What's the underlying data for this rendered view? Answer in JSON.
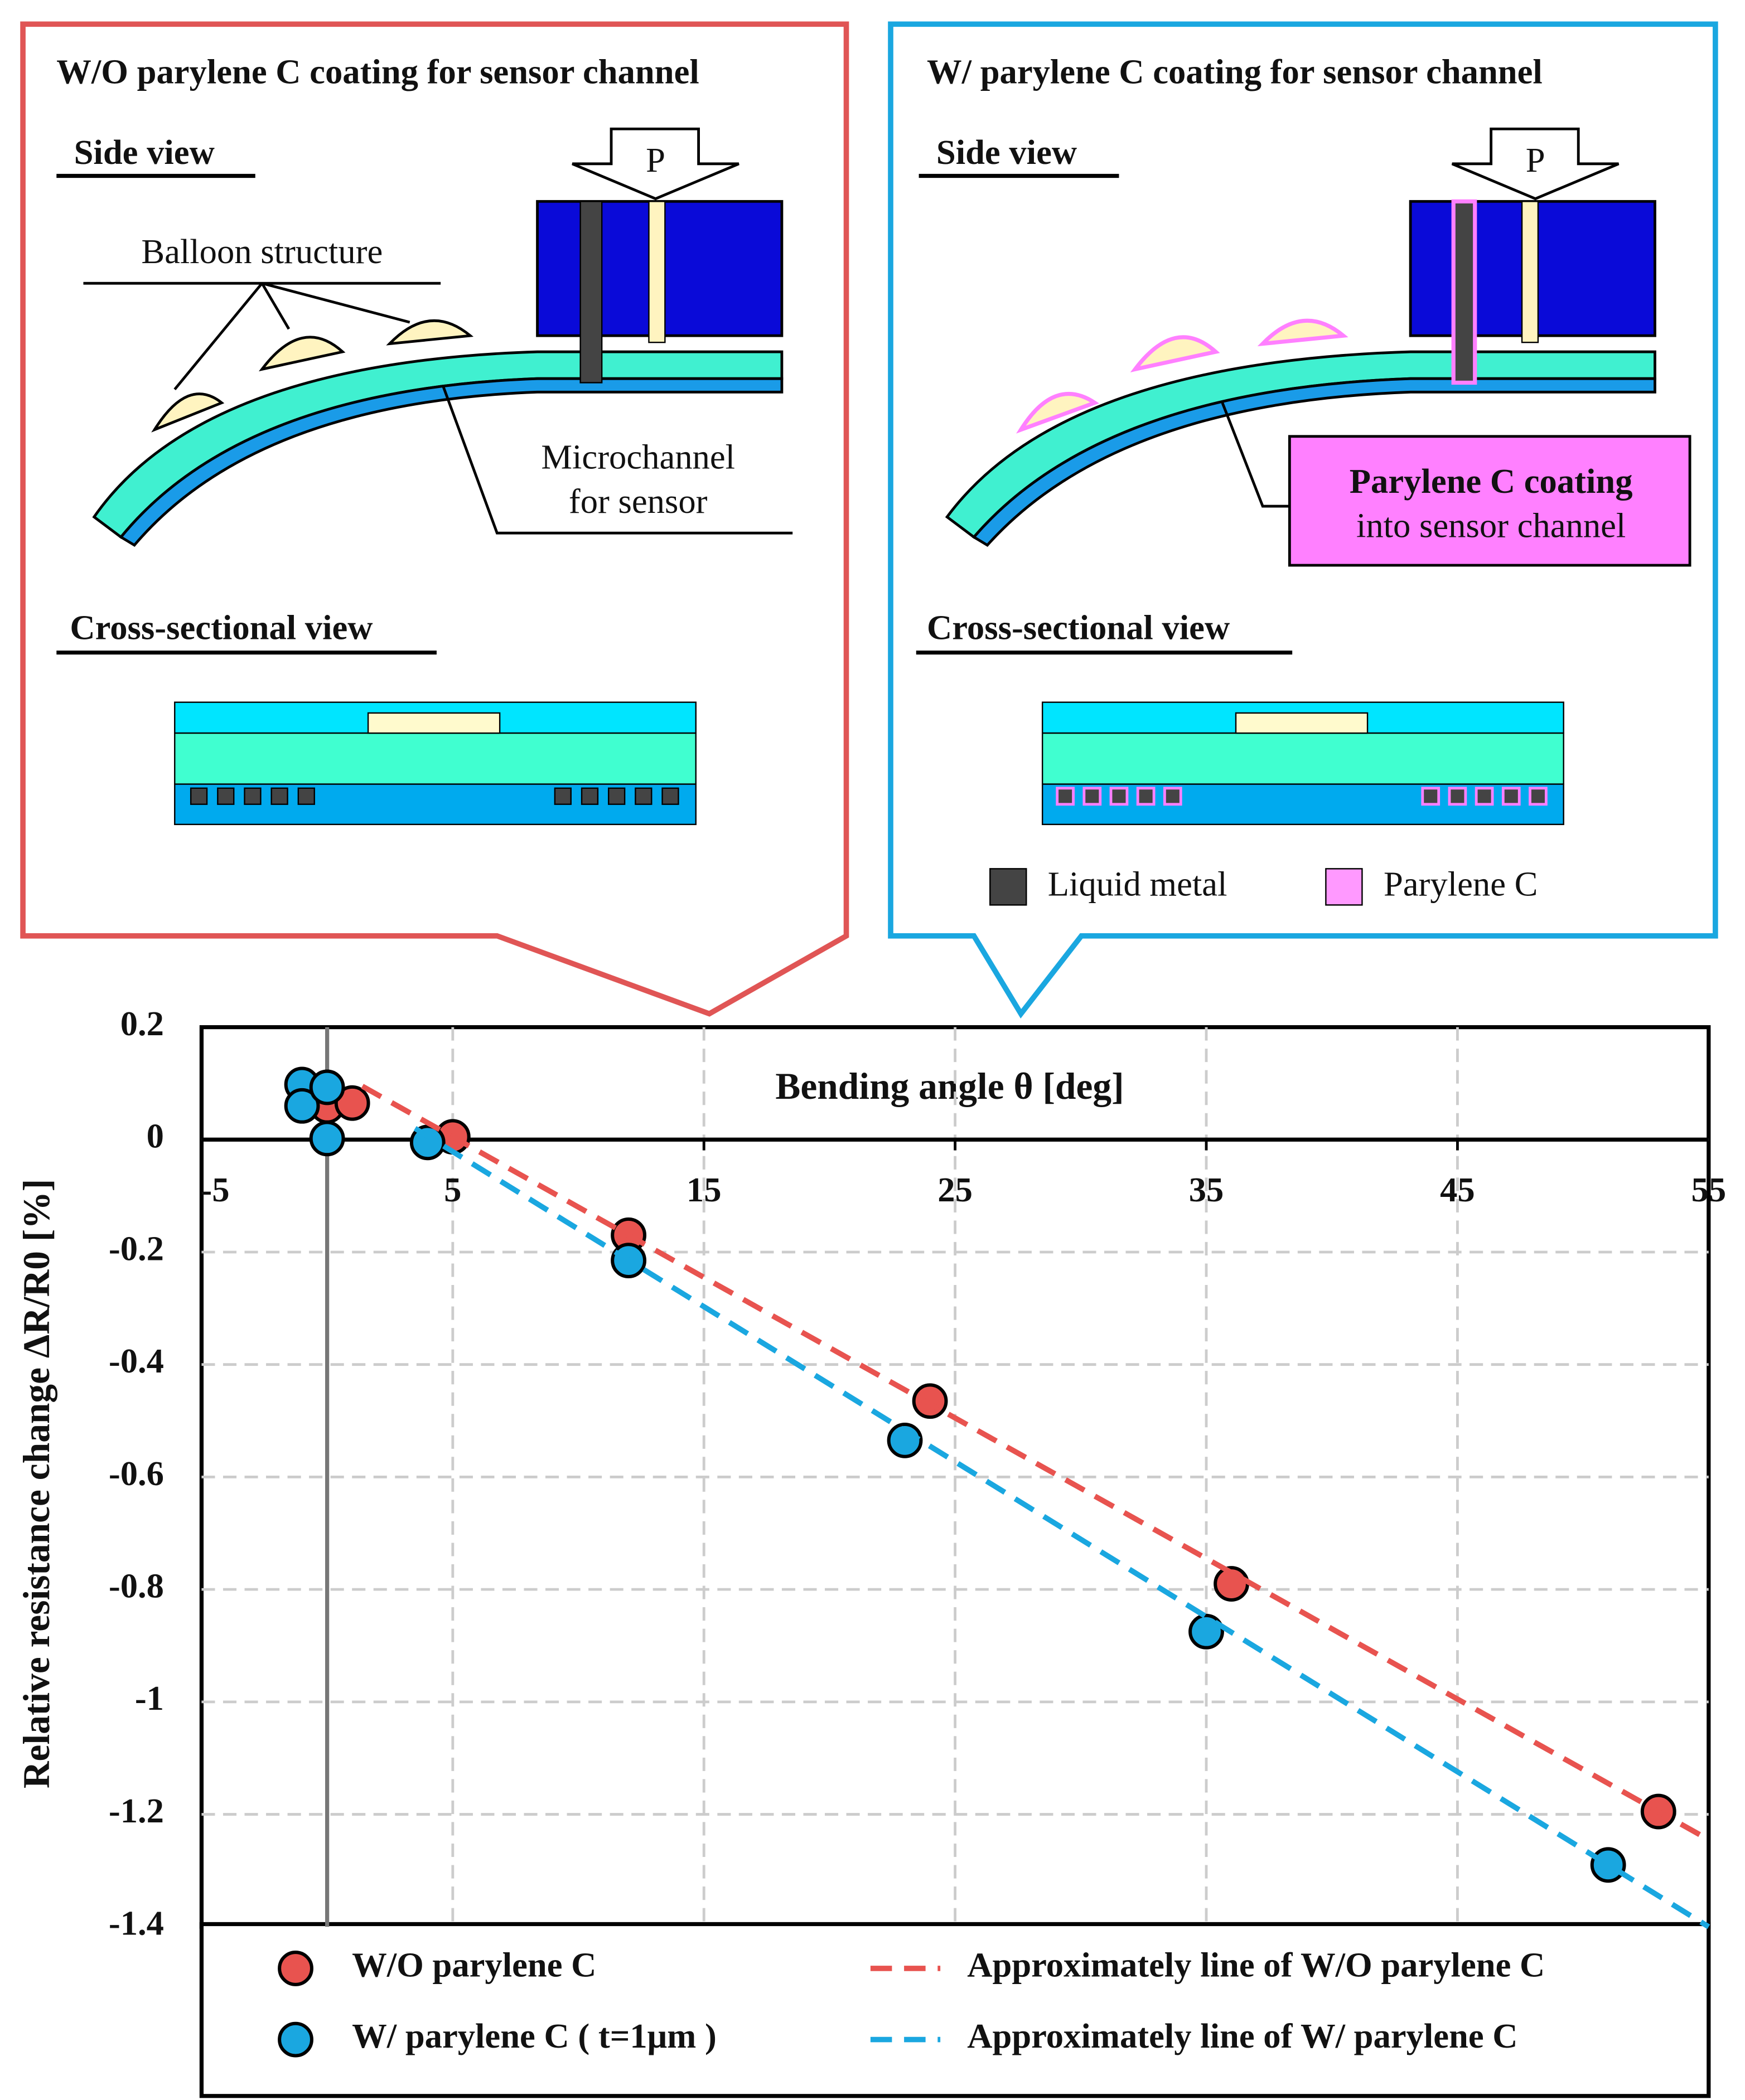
{
  "chart_data": {
    "type": "scatter",
    "x_label": "Bending angle θ [deg]",
    "y_label": "Relative resistance change ΔR/R0 [%]",
    "xlim": [
      -5,
      55
    ],
    "xticks": [
      -5,
      5,
      15,
      25,
      35,
      45,
      55
    ],
    "ylim": [
      -1.4,
      0.2
    ],
    "yticks": [
      0.2,
      0,
      -0.2,
      -0.4,
      -0.6,
      -0.8,
      -1,
      -1.2,
      -1.4
    ],
    "grid": true,
    "series": [
      {
        "name": "W/O parylene C",
        "color": "#e8534f",
        "style": "marker",
        "x": [
          0,
          1,
          5,
          12,
          24,
          36,
          53
        ],
        "values": [
          0.06,
          0.065,
          0.005,
          -0.17,
          -0.465,
          -0.79,
          -1.195
        ]
      },
      {
        "name": "W/ parylene C ( t=1μm )",
        "color": "#1aa7e0",
        "style": "marker",
        "x": [
          -1,
          -1,
          0,
          0,
          4,
          12,
          23,
          35,
          51
        ],
        "values": [
          0.098,
          0.06,
          0.093,
          0.002,
          -0.005,
          -0.215,
          -0.535,
          -0.875,
          -1.29
        ]
      },
      {
        "name": "Approximately line of W/O parylene C",
        "color": "#e8534f",
        "style": "dashed",
        "x": [
          1.4,
          55
        ],
        "values": [
          0.095,
          -1.245
        ]
      },
      {
        "name": "Approximately line of W/ parylene C",
        "color": "#1aa7e0",
        "style": "dashed",
        "x": [
          3.5,
          55
        ],
        "values": [
          0.02,
          -1.4
        ]
      }
    ]
  },
  "panels": [
    {
      "title": "W/O parylene C coating for sensor channel",
      "side_view": "Side view",
      "pressure": "P",
      "balloon": "Balloon structure",
      "channel_1": "Microchannel",
      "channel_2": "for sensor",
      "cross_view": "Cross-sectional view"
    },
    {
      "title": "W/ parylene C coating for sensor channel",
      "side_view": "Side view",
      "pressure": "P",
      "coating_1": "Parylene C coating",
      "coating_2": "into sensor channel",
      "cross_view": "Cross-sectional view",
      "legend_metal": "Liquid metal",
      "legend_parylene": "Parylene C"
    }
  ]
}
